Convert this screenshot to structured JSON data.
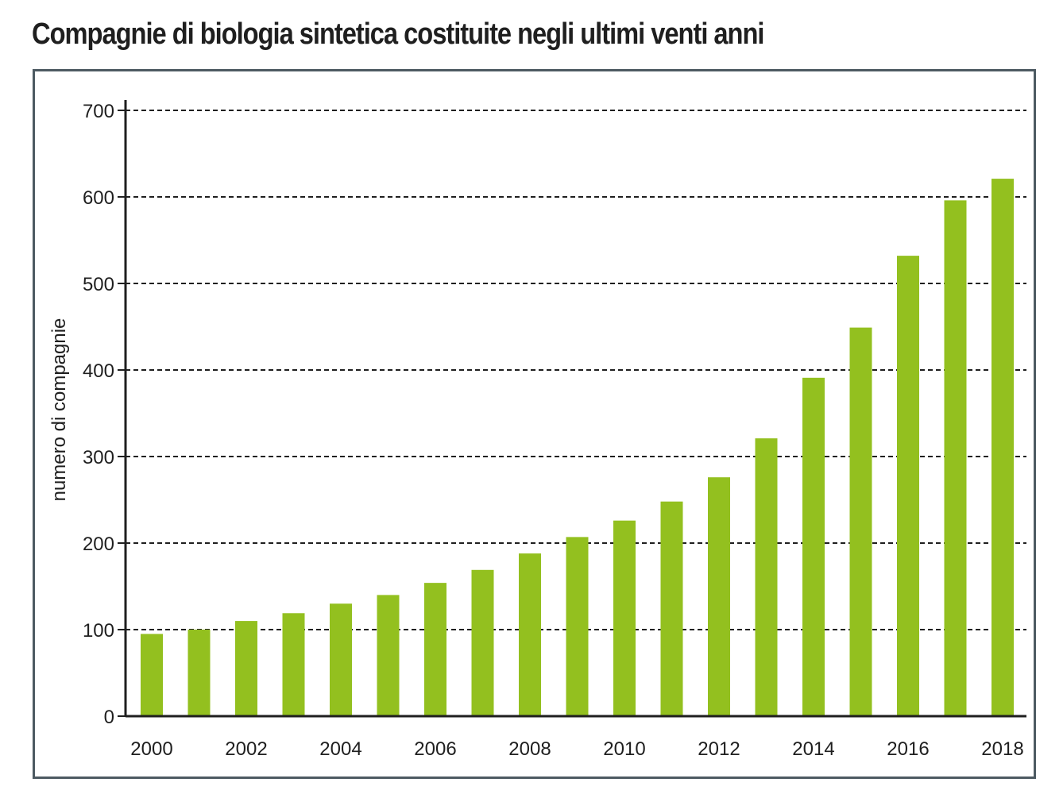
{
  "chart_data": {
    "type": "bar",
    "title": "Compagnie di biologia sintetica costituite negli ultimi venti anni",
    "xlabel": "",
    "ylabel": "numero di compagnie",
    "x": [
      2000,
      2001,
      2002,
      2003,
      2004,
      2005,
      2006,
      2007,
      2008,
      2009,
      2010,
      2011,
      2012,
      2013,
      2014,
      2015,
      2016,
      2017,
      2018
    ],
    "values": [
      95,
      100,
      110,
      119,
      130,
      140,
      154,
      169,
      188,
      207,
      226,
      248,
      276,
      321,
      391,
      449,
      532,
      596,
      621
    ],
    "x_tick_labels": [
      "2000",
      "2002",
      "2004",
      "2006",
      "2008",
      "2010",
      "2012",
      "2014",
      "2016",
      "2018"
    ],
    "y_tick_labels": [
      "0",
      "100",
      "200",
      "300",
      "400",
      "500",
      "600",
      "700"
    ],
    "ylim": [
      0,
      700
    ],
    "grid": "horizontal dashed",
    "legend": "none",
    "colors": {
      "bar": "#93c01f",
      "grid": "#1f1f1f",
      "frame": "#4d5a62"
    }
  }
}
